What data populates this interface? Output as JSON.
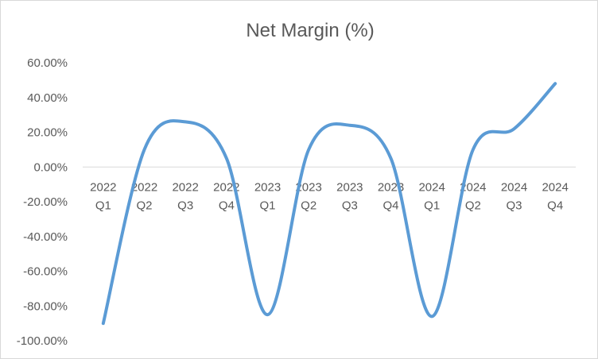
{
  "chart_data": {
    "type": "line",
    "title": "Net Margin (%)",
    "xlabel": "",
    "ylabel": "",
    "categories": [
      [
        "2022",
        "Q1"
      ],
      [
        "2022",
        "Q2"
      ],
      [
        "2022",
        "Q3"
      ],
      [
        "2022",
        "Q4"
      ],
      [
        "2023",
        "Q1"
      ],
      [
        "2023",
        "Q2"
      ],
      [
        "2023",
        "Q3"
      ],
      [
        "2023",
        "Q4"
      ],
      [
        "2024",
        "Q1"
      ],
      [
        "2024",
        "Q2"
      ],
      [
        "2024",
        "Q3"
      ],
      [
        "2024",
        "Q4"
      ]
    ],
    "series": [
      {
        "values": [
          -90,
          10,
          26,
          5,
          -85,
          10,
          24,
          5,
          -86,
          10,
          22,
          48
        ],
        "color": "#5b9bd5",
        "smooth": true
      }
    ],
    "ylim": [
      -100,
      60
    ],
    "yticks": [
      60,
      40,
      20,
      0,
      -20,
      -40,
      -60,
      -80,
      -100
    ],
    "ytick_labels": [
      "60.00%",
      "40.00%",
      "20.00%",
      "0.00%",
      "-20.00%",
      "-40.00%",
      "-60.00%",
      "-80.00%",
      "-100.00%"
    ],
    "grid": false,
    "legend": "none",
    "axis_color": "#d9d9d9"
  }
}
